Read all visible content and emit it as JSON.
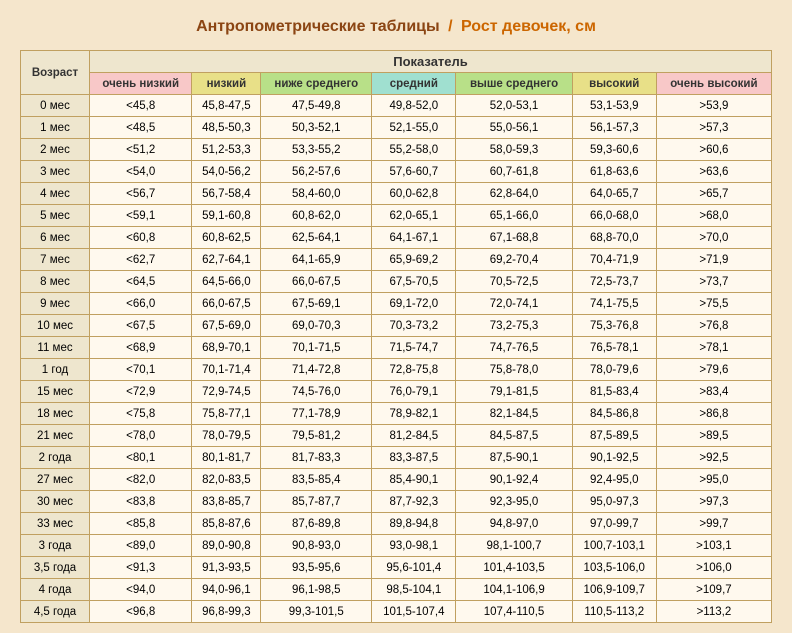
{
  "title": {
    "part1": "Антропометрические таблицы",
    "slash": "/",
    "part2": "Рост девочек, см"
  },
  "header": {
    "age": "Возраст",
    "indicator": "Показатель",
    "cols": [
      "очень низкий",
      "низкий",
      "ниже среднего",
      "средний",
      "выше среднего",
      "высокий",
      "очень высокий"
    ]
  },
  "rows": [
    {
      "age": "0 мес",
      "c": [
        "<45,8",
        "45,8-47,5",
        "47,5-49,8",
        "49,8-52,0",
        "52,0-53,1",
        "53,1-53,9",
        ">53,9"
      ]
    },
    {
      "age": "1 мес",
      "c": [
        "<48,5",
        "48,5-50,3",
        "50,3-52,1",
        "52,1-55,0",
        "55,0-56,1",
        "56,1-57,3",
        ">57,3"
      ]
    },
    {
      "age": "2 мес",
      "c": [
        "<51,2",
        "51,2-53,3",
        "53,3-55,2",
        "55,2-58,0",
        "58,0-59,3",
        "59,3-60,6",
        ">60,6"
      ]
    },
    {
      "age": "3 мес",
      "c": [
        "<54,0",
        "54,0-56,2",
        "56,2-57,6",
        "57,6-60,7",
        "60,7-61,8",
        "61,8-63,6",
        ">63,6"
      ]
    },
    {
      "age": "4 мес",
      "c": [
        "<56,7",
        "56,7-58,4",
        "58,4-60,0",
        "60,0-62,8",
        "62,8-64,0",
        "64,0-65,7",
        ">65,7"
      ]
    },
    {
      "age": "5 мес",
      "c": [
        "<59,1",
        "59,1-60,8",
        "60,8-62,0",
        "62,0-65,1",
        "65,1-66,0",
        "66,0-68,0",
        ">68,0"
      ]
    },
    {
      "age": "6 мес",
      "c": [
        "<60,8",
        "60,8-62,5",
        "62,5-64,1",
        "64,1-67,1",
        "67,1-68,8",
        "68,8-70,0",
        ">70,0"
      ]
    },
    {
      "age": "7 мес",
      "c": [
        "<62,7",
        "62,7-64,1",
        "64,1-65,9",
        "65,9-69,2",
        "69,2-70,4",
        "70,4-71,9",
        ">71,9"
      ]
    },
    {
      "age": "8 мес",
      "c": [
        "<64,5",
        "64,5-66,0",
        "66,0-67,5",
        "67,5-70,5",
        "70,5-72,5",
        "72,5-73,7",
        ">73,7"
      ]
    },
    {
      "age": "9 мес",
      "c": [
        "<66,0",
        "66,0-67,5",
        "67,5-69,1",
        "69,1-72,0",
        "72,0-74,1",
        "74,1-75,5",
        ">75,5"
      ]
    },
    {
      "age": "10 мес",
      "c": [
        "<67,5",
        "67,5-69,0",
        "69,0-70,3",
        "70,3-73,2",
        "73,2-75,3",
        "75,3-76,8",
        ">76,8"
      ]
    },
    {
      "age": "11 мес",
      "c": [
        "<68,9",
        "68,9-70,1",
        "70,1-71,5",
        "71,5-74,7",
        "74,7-76,5",
        "76,5-78,1",
        ">78,1"
      ]
    },
    {
      "age": "1 год",
      "c": [
        "<70,1",
        "70,1-71,4",
        "71,4-72,8",
        "72,8-75,8",
        "75,8-78,0",
        "78,0-79,6",
        ">79,6"
      ]
    },
    {
      "age": "15 мес",
      "c": [
        "<72,9",
        "72,9-74,5",
        "74,5-76,0",
        "76,0-79,1",
        "79,1-81,5",
        "81,5-83,4",
        ">83,4"
      ]
    },
    {
      "age": "18 мес",
      "c": [
        "<75,8",
        "75,8-77,1",
        "77,1-78,9",
        "78,9-82,1",
        "82,1-84,5",
        "84,5-86,8",
        ">86,8"
      ]
    },
    {
      "age": "21 мес",
      "c": [
        "<78,0",
        "78,0-79,5",
        "79,5-81,2",
        "81,2-84,5",
        "84,5-87,5",
        "87,5-89,5",
        ">89,5"
      ]
    },
    {
      "age": "2 года",
      "c": [
        "<80,1",
        "80,1-81,7",
        "81,7-83,3",
        "83,3-87,5",
        "87,5-90,1",
        "90,1-92,5",
        ">92,5"
      ]
    },
    {
      "age": "27 мес",
      "c": [
        "<82,0",
        "82,0-83,5",
        "83,5-85,4",
        "85,4-90,1",
        "90,1-92,4",
        "92,4-95,0",
        ">95,0"
      ]
    },
    {
      "age": "30 мес",
      "c": [
        "<83,8",
        "83,8-85,7",
        "85,7-87,7",
        "87,7-92,3",
        "92,3-95,0",
        "95,0-97,3",
        ">97,3"
      ]
    },
    {
      "age": "33 мес",
      "c": [
        "<85,8",
        "85,8-87,6",
        "87,6-89,8",
        "89,8-94,8",
        "94,8-97,0",
        "97,0-99,7",
        ">99,7"
      ]
    },
    {
      "age": "3 года",
      "c": [
        "<89,0",
        "89,0-90,8",
        "90,8-93,0",
        "93,0-98,1",
        "98,1-100,7",
        "100,7-103,1",
        ">103,1"
      ]
    },
    {
      "age": "3,5 года",
      "c": [
        "<91,3",
        "91,3-93,5",
        "93,5-95,6",
        "95,6-101,4",
        "101,4-103,5",
        "103,5-106,0",
        ">106,0"
      ]
    },
    {
      "age": "4 года",
      "c": [
        "<94,0",
        "94,0-96,1",
        "96,1-98,5",
        "98,5-104,1",
        "104,1-106,9",
        "106,9-109,7",
        ">109,7"
      ]
    },
    {
      "age": "4,5 года",
      "c": [
        "<96,8",
        "96,8-99,3",
        "99,3-101,5",
        "101,5-107,4",
        "107,4-110,5",
        "110,5-113,2",
        ">113,2"
      ]
    }
  ]
}
